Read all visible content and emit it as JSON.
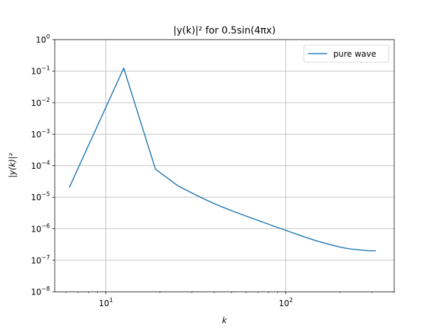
{
  "chart_data": {
    "type": "line",
    "title": "|y(k)|² for 0.5sin(4πx)",
    "xlabel": "k",
    "ylabel": "|y(k)|²",
    "x_scale": "log",
    "y_scale": "log",
    "xlim": [
      5.2,
      400
    ],
    "ylim": [
      1e-08,
      1
    ],
    "grid": true,
    "legend_position": "upper right",
    "x_ticks": [
      {
        "value": 10,
        "base": "10",
        "exp": "1"
      },
      {
        "value": 100,
        "base": "10",
        "exp": "2"
      }
    ],
    "y_ticks": [
      {
        "value": 1e-08,
        "base": "10",
        "exp": "−8"
      },
      {
        "value": 1e-07,
        "base": "10",
        "exp": "−7"
      },
      {
        "value": 1e-06,
        "base": "10",
        "exp": "−6"
      },
      {
        "value": 1e-05,
        "base": "10",
        "exp": "−5"
      },
      {
        "value": 0.0001,
        "base": "10",
        "exp": "−4"
      },
      {
        "value": 0.001,
        "base": "10",
        "exp": "−3"
      },
      {
        "value": 0.01,
        "base": "10",
        "exp": "−2"
      },
      {
        "value": 0.1,
        "base": "10",
        "exp": "−1"
      },
      {
        "value": 1,
        "base": "10",
        "exp": "0"
      }
    ],
    "series": [
      {
        "name": "pure wave",
        "color": "#1f77b4",
        "x": [
          6.28,
          12.57,
          18.85,
          25.13,
          31.42,
          37.7,
          43.98,
          50.27,
          62.83,
          75.4,
          87.96,
          100.53,
          125.66,
          150.8,
          175.93,
          201.06,
          226.19,
          251.33,
          276.46,
          301.59,
          314.16
        ],
        "y": [
          2.1e-05,
          0.125,
          7.8e-05,
          2.3e-05,
          1.2e-05,
          7.3e-06,
          5e-06,
          3.7e-06,
          2.3e-06,
          1.58e-06,
          1.15e-06,
          8.8e-07,
          5.6e-07,
          4e-07,
          3.15e-07,
          2.6e-07,
          2.3e-07,
          2.15e-07,
          2.05e-07,
          2e-07,
          2e-07
        ]
      }
    ]
  }
}
